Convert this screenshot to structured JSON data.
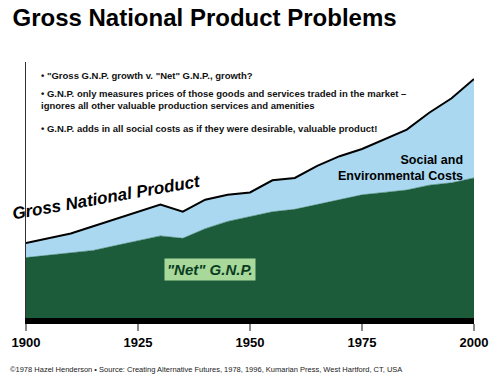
{
  "chart_data": {
    "type": "area",
    "title": "Gross National Product Problems",
    "stacked": true,
    "grid": false,
    "tick_labels": "x",
    "x": [
      1900,
      1905,
      1910,
      1915,
      1920,
      1925,
      1930,
      1935,
      1940,
      1945,
      1950,
      1955,
      1960,
      1965,
      1970,
      1975,
      1980,
      1985,
      1990,
      1995,
      2000
    ],
    "series": [
      {
        "name": "\"Net\" G.N.P.",
        "color": "#1d5c3a",
        "values": [
          25,
          26,
          27,
          28,
          30,
          32,
          34,
          33,
          37,
          40,
          42,
          44,
          45,
          47,
          49,
          51,
          52,
          53,
          55,
          56,
          58
        ]
      },
      {
        "name": "Social and\nEnvironmental Costs",
        "color": "#a9d8f0",
        "values": [
          6,
          7,
          8,
          10,
          11,
          12,
          13,
          11,
          12,
          11,
          10,
          13,
          13,
          16,
          18,
          19,
          22,
          25,
          30,
          35,
          41
        ]
      }
    ],
    "xlim": [
      1900,
      2000
    ],
    "xticks": [
      1900,
      1925,
      1950,
      1975,
      2000
    ],
    "ylim": [
      0,
      106
    ],
    "annotations": [
      "• \"Gross G.N.P. growth v. \"Net\" G.N.P., growth?",
      "• G.N.P. only measures prices of those goods and services traded in the market –\nignores all other valuable production services and amenities",
      "• G.N.P. adds in all social costs as if they were desirable, valuable product!",
      "Gross National Product",
      "©1978 Hazel Henderson • Source: Creating Alternative Futures, 1978, 1996, Kumarian Press, West Hartford, CT, USA"
    ]
  }
}
